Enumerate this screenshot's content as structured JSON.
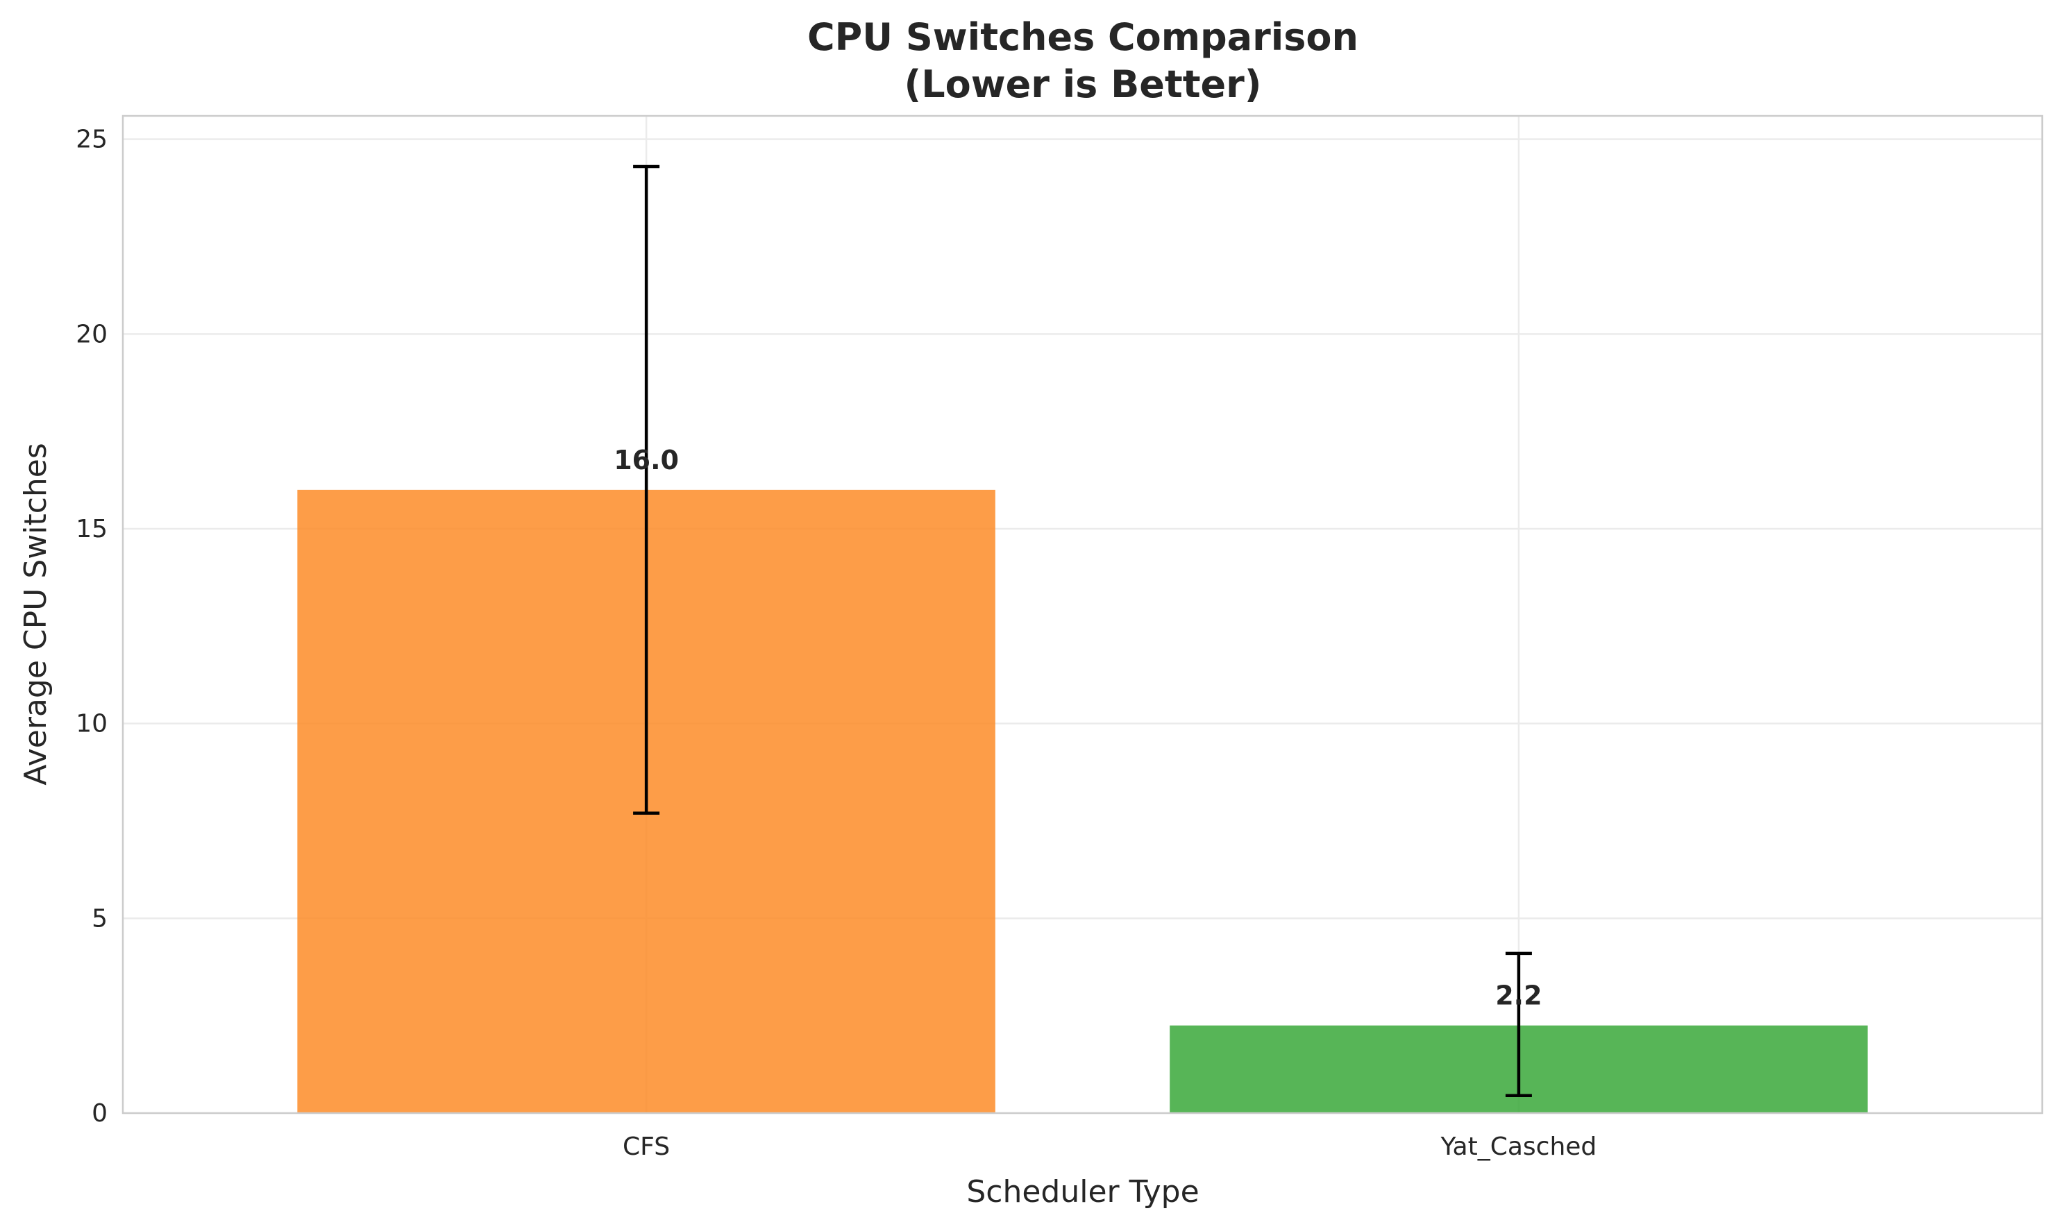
{
  "chart_data": {
    "type": "bar",
    "title": "CPU Switches Comparison",
    "subtitle": "(Lower is Better)",
    "xlabel": "Scheduler Type",
    "ylabel": "Average CPU Switches",
    "categories": [
      "CFS",
      "Yat_Casched"
    ],
    "values": [
      16.0,
      2.25
    ],
    "error_low": [
      7.7,
      0.45
    ],
    "error_high": [
      24.3,
      4.1
    ],
    "value_labels": [
      "16.0",
      "2.2"
    ],
    "ylim": [
      0,
      25.6
    ],
    "yticks": [
      0,
      5,
      10,
      15,
      20,
      25
    ],
    "ytick_labels": [
      "0",
      "5",
      "10",
      "15",
      "20",
      "25"
    ],
    "grid": true,
    "bar_colors": [
      "#fd8c28",
      "#3aa83a"
    ]
  }
}
